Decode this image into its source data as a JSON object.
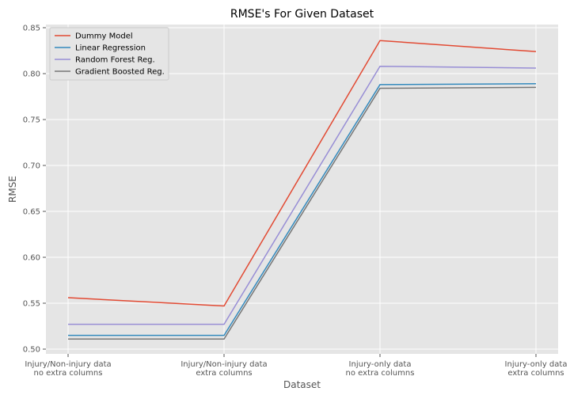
{
  "chart_data": {
    "type": "line",
    "title": "RMSE's For Given Dataset",
    "xlabel": "Dataset",
    "ylabel": "RMSE",
    "categories": [
      [
        "Injury/Non-injury data",
        "no extra columns"
      ],
      [
        "Injury/Non-injury data",
        "extra columns"
      ],
      [
        "Injury-only data",
        "no extra columns"
      ],
      [
        "Injury-only data",
        "extra columns"
      ]
    ],
    "ylim": [
      0.5,
      0.85
    ],
    "yticks": [
      "0.50",
      "0.55",
      "0.60",
      "0.65",
      "0.70",
      "0.75",
      "0.80",
      "0.85"
    ],
    "grid": true,
    "legend_position": "top-left",
    "series": [
      {
        "name": "Dummy Model",
        "color": "#E24A33",
        "values": [
          0.556,
          0.547,
          0.836,
          0.824
        ]
      },
      {
        "name": "Linear Regression",
        "color": "#348ABD",
        "values": [
          0.515,
          0.515,
          0.788,
          0.789
        ]
      },
      {
        "name": "Random Forest Reg.",
        "color": "#988ED5",
        "values": [
          0.527,
          0.527,
          0.808,
          0.806
        ]
      },
      {
        "name": "Gradient Boosted Reg.",
        "color": "#777777",
        "values": [
          0.511,
          0.511,
          0.784,
          0.785
        ]
      }
    ]
  }
}
